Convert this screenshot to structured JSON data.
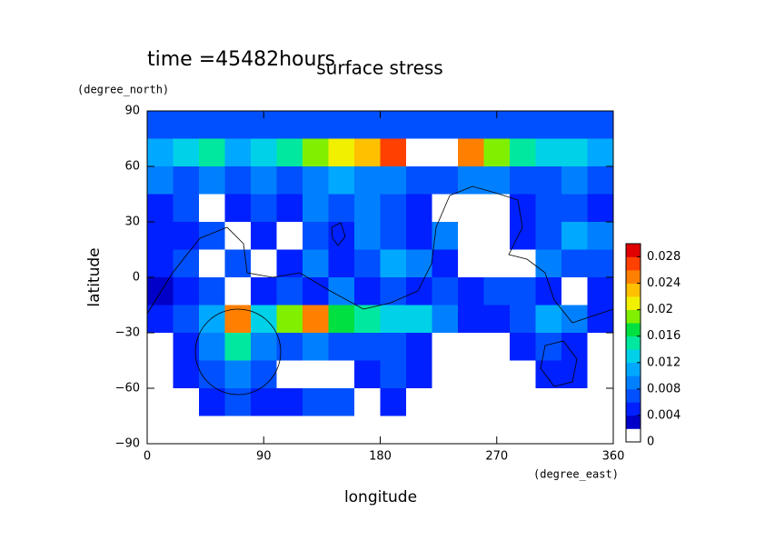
{
  "chart_data": {
    "type": "contour",
    "title": "surface stress",
    "subtitle": "time =45482hours",
    "x_label": "longitude",
    "x_units": "(degree_east)",
    "y_label": "latitude",
    "y_units": "(degree_north)",
    "xlim": [
      0,
      360
    ],
    "xticks": [
      0,
      90,
      180,
      270,
      360
    ],
    "ylim": [
      -90,
      90
    ],
    "yticks": [
      {
        "value": -90,
        "label": "−90"
      },
      {
        "value": -60,
        "label": "−60"
      },
      {
        "value": -30,
        "label": "−30"
      },
      0,
      30,
      60,
      90
    ],
    "x": [
      10,
      30,
      50,
      70,
      90,
      110,
      130,
      150,
      170,
      190,
      210,
      230,
      250,
      270,
      290,
      310,
      330,
      350
    ],
    "y": [
      82.5,
      67.5,
      52.5,
      37.5,
      22.5,
      7.5,
      -7.5,
      -22.5,
      -37.5,
      -52.5,
      -67.5,
      -82.5
    ],
    "z": [
      [
        0.006,
        0.006,
        0.006,
        0.006,
        0.006,
        0.006,
        0.006,
        0.006,
        0.006,
        0.006,
        0.006,
        0.006,
        0.006,
        0.006,
        0.006,
        0.006,
        0.006,
        0.006
      ],
      [
        0.01,
        0.012,
        0.014,
        0.01,
        0.012,
        0.014,
        0.018,
        0.02,
        0.022,
        0.026,
        0.032,
        0.03,
        0.024,
        0.018,
        0.014,
        0.012,
        0.012,
        0.01
      ],
      [
        0.008,
        0.006,
        0.008,
        0.006,
        0.008,
        0.006,
        0.008,
        0.01,
        0.008,
        0.008,
        0.006,
        0.006,
        0.008,
        0.008,
        0.006,
        0.006,
        0.008,
        0.006
      ],
      [
        0.005,
        0.006,
        0.001,
        0.004,
        0.006,
        0.004,
        0.008,
        0.006,
        0.008,
        0.006,
        0.004,
        0.001,
        0.001,
        0.001,
        0.004,
        0.006,
        0.006,
        0.004
      ],
      [
        0.004,
        0.004,
        0.006,
        0.001,
        0.004,
        0.001,
        0.006,
        0.004,
        0.008,
        0.006,
        0.004,
        0.008,
        0.001,
        0.001,
        0.004,
        0.006,
        0.01,
        0.008
      ],
      [
        0.004,
        0.006,
        0.001,
        0.006,
        0.001,
        0.004,
        0.008,
        0.004,
        0.006,
        0.01,
        0.008,
        0.004,
        0.001,
        0.001,
        0.001,
        0.008,
        0.006,
        0.006
      ],
      [
        0.003,
        0.004,
        0.006,
        0.001,
        0.004,
        0.006,
        0.004,
        0.008,
        0.004,
        0.006,
        0.004,
        0.006,
        0.004,
        0.006,
        0.006,
        0.004,
        0.001,
        0.004
      ],
      [
        0.004,
        0.006,
        0.01,
        0.024,
        0.012,
        0.018,
        0.024,
        0.016,
        0.014,
        0.012,
        0.012,
        0.008,
        0.004,
        0.004,
        0.006,
        0.01,
        0.008,
        0.004
      ],
      [
        0.001,
        0.004,
        0.008,
        0.014,
        0.008,
        0.006,
        0.008,
        0.006,
        0.006,
        0.006,
        0.004,
        0.001,
        0.001,
        0.001,
        0.004,
        0.006,
        0.004,
        0.001
      ],
      [
        0.001,
        0.004,
        0.006,
        0.008,
        0.006,
        0.001,
        0.001,
        0.001,
        0.004,
        0.006,
        0.004,
        0.001,
        0.001,
        0.001,
        0.001,
        0.004,
        0.004,
        0.001
      ],
      [
        0.001,
        0.001,
        0.004,
        0.006,
        0.004,
        0.004,
        0.006,
        0.006,
        0.001,
        0.004,
        0.001,
        0.001,
        0.001,
        0.001,
        0.001,
        0.001,
        0.001,
        0.001
      ],
      [
        0.001,
        0.001,
        0.001,
        0.001,
        0.001,
        0.001,
        0.001,
        0.001,
        0.001,
        0.001,
        0.001,
        0.001,
        0.001,
        0.001,
        0.001,
        0.001,
        0.001,
        0.001
      ]
    ],
    "levels": [
      0,
      0.002,
      0.004,
      0.006,
      0.008,
      0.01,
      0.012,
      0.014,
      0.016,
      0.018,
      0.02,
      0.022,
      0.024,
      0.026,
      0.028,
      0.03
    ],
    "colors": [
      "#ffffff",
      "#0000c8",
      "#0020ff",
      "#0050ff",
      "#0080ff",
      "#00a8ff",
      "#00d0e8",
      "#00e8a0",
      "#00e040",
      "#80f000",
      "#f0f000",
      "#ffc000",
      "#ff8000",
      "#ff4000",
      "#e00000"
    ],
    "over_color": "#ffffff",
    "colorbar_ticks": [
      0,
      0.004,
      0.008,
      0.012,
      0.016,
      0.02,
      0.024,
      0.028
    ]
  }
}
